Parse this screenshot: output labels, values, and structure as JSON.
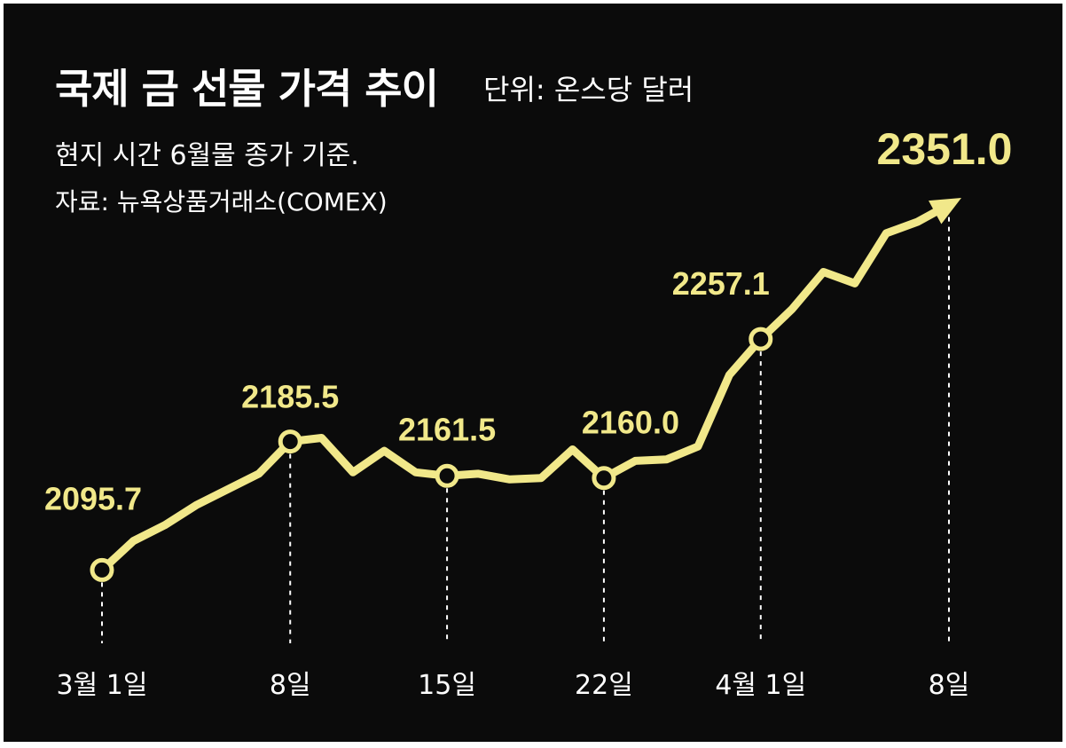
{
  "header": {
    "title": "국제 금 선물 가격 추이",
    "unit": "단위: 온스당 달러",
    "note": "현지 시간 6월물 종가 기준.",
    "source": "자료: 뉴욕상품거래소(COMEX)"
  },
  "colors": {
    "background": "#0b0b0b",
    "line": "#f1e88a",
    "text": "#ffffff"
  },
  "chart_data": {
    "type": "line",
    "title": "국제 금 선물 가격 추이",
    "xlabel": "",
    "ylabel": "",
    "unit": "온스당 달러",
    "x_ticks": [
      "3월 1일",
      "8일",
      "15일",
      "22일",
      "4월 1일",
      "8일"
    ],
    "ylim": [
      2060,
      2370
    ],
    "grid": false,
    "legend": "none",
    "series": [
      {
        "values": [
          2095.7,
          2116,
          2127,
          2141,
          2152,
          2163,
          2185.5,
          2188,
          2164,
          2179,
          2164,
          2161.5,
          2163,
          2159,
          2160,
          2180,
          2160.0,
          2172,
          2173,
          2182,
          2232,
          2257.1,
          2278,
          2304,
          2296,
          2331,
          2339,
          2351.0
        ]
      }
    ],
    "markers": [
      {
        "index": 0,
        "label": "2095.7"
      },
      {
        "index": 6,
        "label": "2185.5"
      },
      {
        "index": 11,
        "label": "2161.5"
      },
      {
        "index": 16,
        "label": "2160.0"
      },
      {
        "index": 21,
        "label": "2257.1"
      }
    ],
    "end_arrow": {
      "index": 27,
      "label": "2351.0"
    },
    "tick_indices": [
      0,
      6,
      11,
      16,
      21,
      27
    ]
  }
}
